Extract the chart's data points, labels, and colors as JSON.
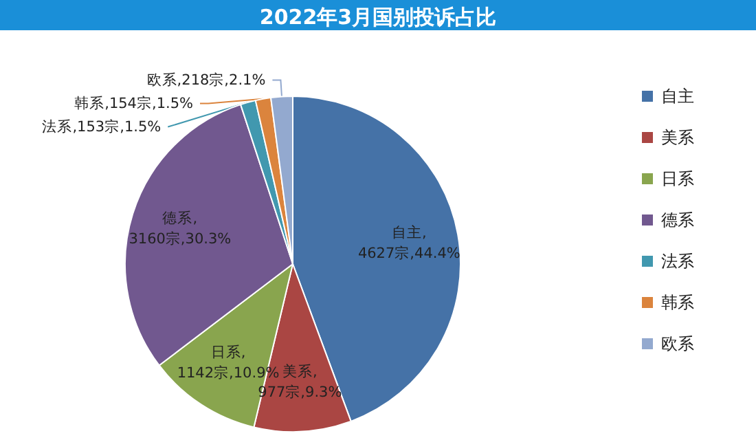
{
  "chart_data": {
    "type": "pie",
    "title": "2022年3月国别投诉占比",
    "categories": [
      "自主",
      "美系",
      "日系",
      "德系",
      "法系",
      "韩系",
      "欧系"
    ],
    "values": [
      4627,
      977,
      1142,
      3160,
      153,
      154,
      218
    ],
    "colors": [
      "#4572a7",
      "#aa4643",
      "#89a54e",
      "#71588f",
      "#4198af",
      "#db843d",
      "#93a9cf"
    ],
    "value_labels": [
      "自主,\n4627宗,44.4%",
      "美系,\n977宗,9.3%",
      "日系,\n1142宗,10.9%",
      "德系,\n3160宗,30.3%",
      "法系,153宗,1.5%",
      "韩系,154宗,1.5%",
      "欧系,218宗,2.1%"
    ],
    "legend": "right"
  }
}
